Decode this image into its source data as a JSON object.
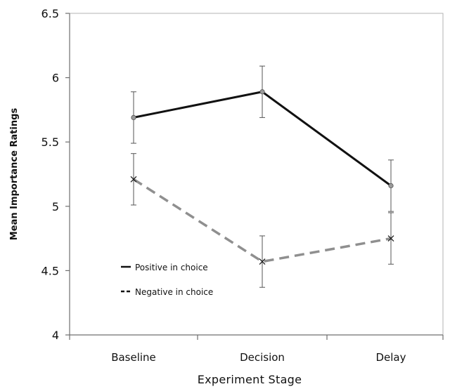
{
  "chart_data": {
    "type": "line",
    "xlabel": "Experiment  Stage",
    "ylabel": "Mean Importance Ratings",
    "categories": [
      "Baseline",
      "Decision",
      "Delay"
    ],
    "ylim": [
      4,
      6.5
    ],
    "yticks": [
      "4",
      "4.5",
      "5",
      "5.5",
      "6",
      "6.5"
    ],
    "yticks_values": [
      4,
      4.5,
      5,
      5.5,
      6,
      6.5
    ],
    "grid": false,
    "legend_position": "lower-left",
    "series": [
      {
        "name": "Positive in choice",
        "values": [
          5.69,
          5.89,
          5.16
        ],
        "error": [
          0.2,
          0.2,
          0.2
        ],
        "color": "#111111",
        "style": "solid",
        "marker": "circle"
      },
      {
        "name": "Negative in choice",
        "values": [
          5.21,
          4.57,
          4.75
        ],
        "error": [
          0.2,
          0.2,
          0.2
        ],
        "color": "#8f8f8f",
        "style": "dashed",
        "marker": "x"
      }
    ]
  }
}
